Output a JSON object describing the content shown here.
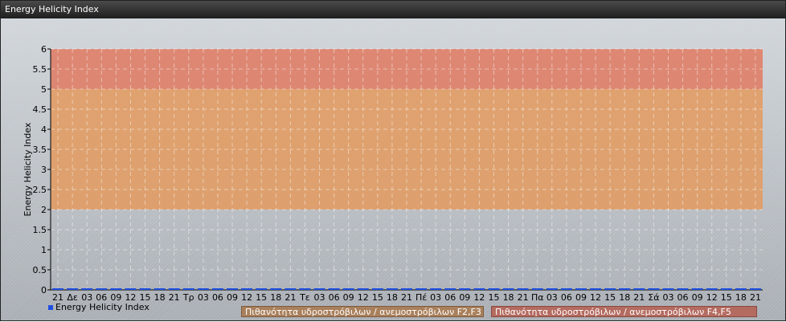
{
  "window": {
    "title": "Energy Helicity Index"
  },
  "chart_data": {
    "type": "line",
    "title": "",
    "ylabel": "Energy Helicity Index",
    "xlabel": "",
    "ylim": [
      0,
      6
    ],
    "yticks": [
      "0",
      "0.5",
      "1",
      "1.5",
      "2",
      "2.5",
      "3",
      "3.5",
      "4",
      "4.5",
      "5",
      "5.5",
      "6"
    ],
    "xticks": [
      "21",
      "Δε",
      "03",
      "06",
      "09",
      "12",
      "15",
      "18",
      "21",
      "Τρ",
      "03",
      "06",
      "09",
      "12",
      "15",
      "18",
      "21",
      "Τε",
      "03",
      "06",
      "09",
      "12",
      "15",
      "18",
      "21",
      "Πέ",
      "03",
      "06",
      "09",
      "12",
      "15",
      "18",
      "21",
      "Πα",
      "03",
      "06",
      "09",
      "12",
      "15",
      "18",
      "21",
      "Σά",
      "03",
      "06",
      "09",
      "12",
      "15",
      "18",
      "21"
    ],
    "grid": true,
    "legend_placement": "bottom-left",
    "series": [
      {
        "name": "Energy Helicity Index",
        "color": "#1f4fe0",
        "values": [
          0,
          0,
          0,
          0,
          0,
          0,
          0,
          0,
          0,
          0,
          0,
          0,
          0,
          0,
          0,
          0,
          0,
          0,
          0,
          0,
          0,
          0,
          0,
          0,
          0,
          0,
          0,
          0,
          0,
          0,
          0,
          0,
          0,
          0,
          0,
          0,
          0,
          0,
          0,
          0,
          0,
          0,
          0,
          0,
          0,
          0,
          0,
          0,
          0
        ]
      }
    ],
    "bands": [
      {
        "from": 2,
        "to": 5,
        "label": "Πιθανότητα υδροστρόβιλων / ανεμοστρόβιλων F2,F3",
        "color": "#e39a5e"
      },
      {
        "from": 5,
        "to": 6,
        "label": "Πιθανότητα υδροστρόβιλων / ανεμοστρόβιλων F4,F5",
        "color": "#e07a62"
      }
    ]
  }
}
